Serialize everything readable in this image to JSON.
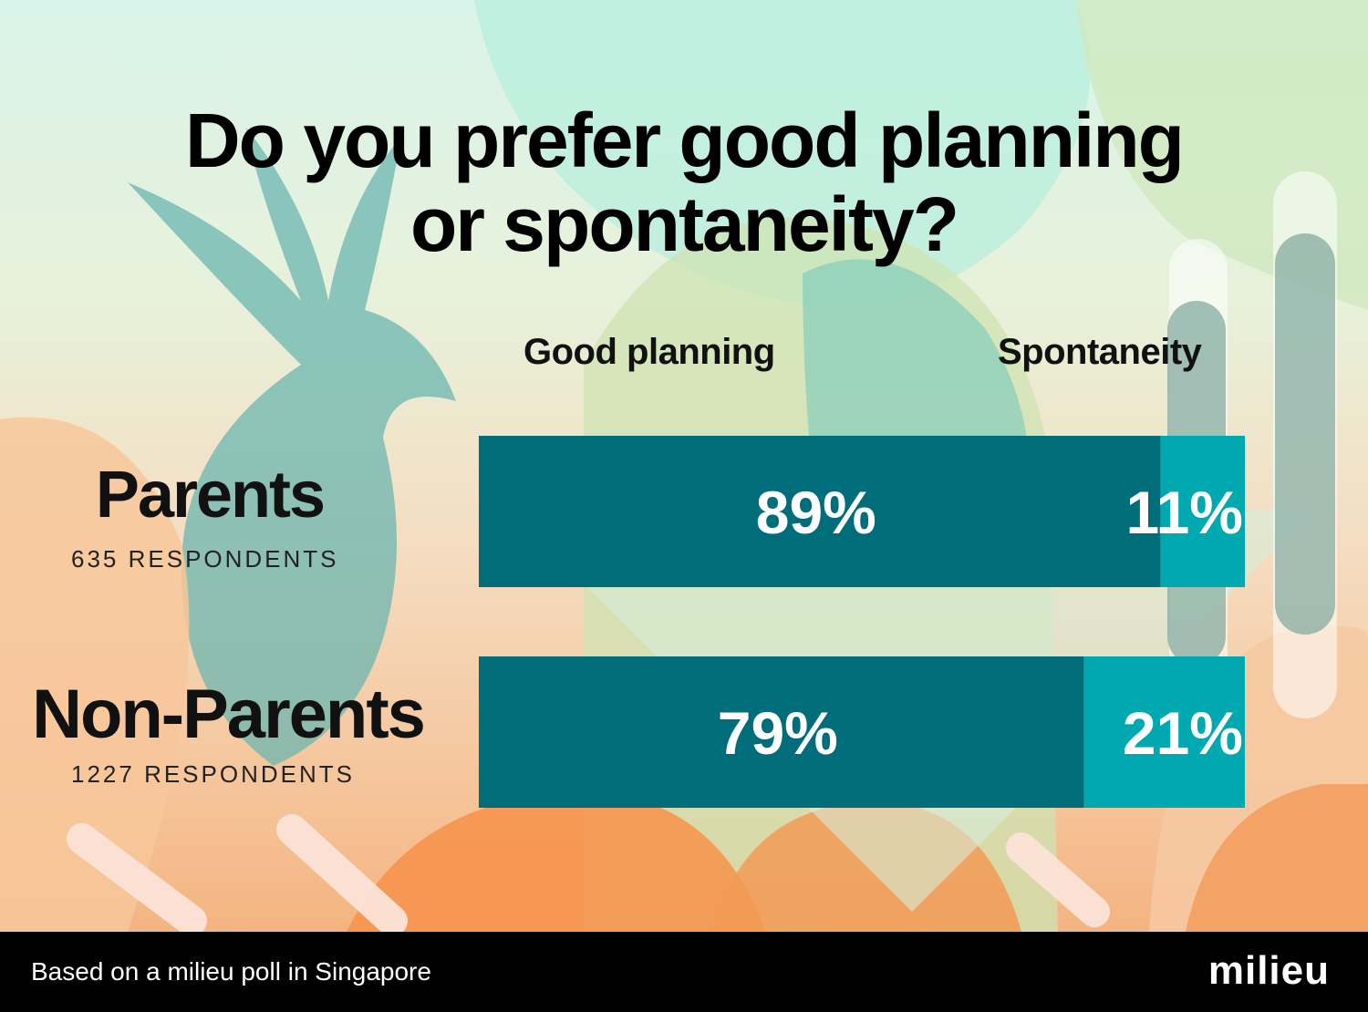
{
  "title_line1": "Do you prefer good planning",
  "title_line2": "or spontaneity?",
  "footer": {
    "note": "Based on a milieu poll in Singapore",
    "brand": "milieu"
  },
  "colors": {
    "good_planning": "#006e7a",
    "spontaneity": "#00a8b0",
    "label_text": "#ffffff"
  },
  "chart_data": {
    "type": "bar",
    "orientation": "horizontal",
    "stacked": true,
    "percent_stacked": true,
    "categories": [
      "Parents",
      "Non-Parents"
    ],
    "category_notes": [
      "635 RESPONDENTS",
      "1227 RESPONDENTS"
    ],
    "series": [
      {
        "name": "Good planning",
        "values": [
          89,
          79
        ],
        "labels": [
          "89%",
          "79%"
        ]
      },
      {
        "name": "Spontaneity",
        "values": [
          11,
          21
        ],
        "labels": [
          "11%",
          "21%"
        ]
      }
    ],
    "xlim": [
      0,
      100
    ],
    "grid": false
  }
}
